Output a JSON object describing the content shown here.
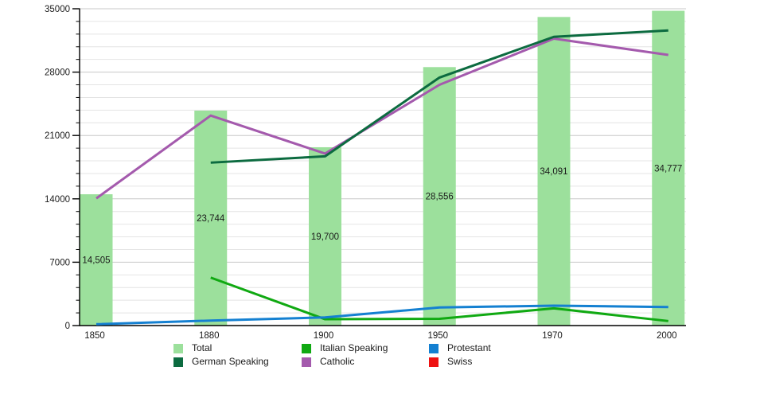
{
  "chart_data": {
    "type": "bar+line",
    "title": "",
    "xlabel": "",
    "ylabel": "",
    "categories": [
      "1850",
      "1880",
      "1900",
      "1950",
      "1970",
      "2000"
    ],
    "bar_series": {
      "name": "Total",
      "color": "#9ce09c",
      "values": [
        14505,
        23744,
        19700,
        28556,
        34091,
        34777
      ],
      "value_labels": [
        "14,505",
        "23,744",
        "19,700",
        "28,556",
        "34,091",
        "34,777"
      ]
    },
    "line_series": [
      {
        "name": "German Speaking",
        "color": "#0c6b40",
        "values": [
          null,
          18000,
          18700,
          27400,
          31900,
          32600
        ]
      },
      {
        "name": "Italian Speaking",
        "color": "#10a912",
        "values": [
          null,
          5300,
          700,
          750,
          1900,
          500
        ]
      },
      {
        "name": "Catholic",
        "color": "#a45aad",
        "values": [
          14050,
          23200,
          19000,
          26600,
          31700,
          29900
        ]
      },
      {
        "name": "Protestant",
        "color": "#1480d1",
        "values": [
          150,
          550,
          900,
          2000,
          2200,
          2050
        ]
      },
      {
        "name": "Swiss",
        "color": "#ee1111",
        "values": [
          null,
          null,
          null,
          null,
          null,
          null
        ]
      }
    ],
    "ylim": [
      0,
      35000
    ],
    "y_major_tick_step": 7000,
    "y_minor_grid_step": 1400,
    "y_tick_labels": [
      "0",
      "7000",
      "14000",
      "21000",
      "28000",
      "35000"
    ],
    "grid": "horizontal-only",
    "legend_position": "bottom",
    "legend": {
      "entries": [
        {
          "label": "Total",
          "color": "#9ce09c"
        },
        {
          "label": "Italian Speaking",
          "color": "#10a912"
        },
        {
          "label": "Protestant",
          "color": "#1480d1"
        },
        {
          "label": "German Speaking",
          "color": "#0c6b40"
        },
        {
          "label": "Catholic",
          "color": "#a45aad"
        },
        {
          "label": "Swiss",
          "color": "#ee1111"
        }
      ]
    }
  },
  "axis_colors": {
    "axis_line": "#000000",
    "major_grid": "#c8c8c8",
    "minor_grid": "#e4e4e4",
    "tick_label": "#1a1a1a"
  }
}
